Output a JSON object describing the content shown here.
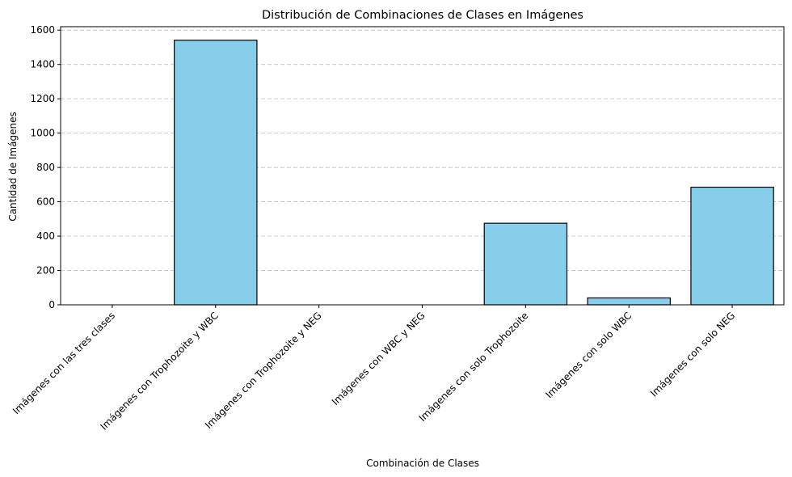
{
  "chart_data": {
    "type": "bar",
    "title": "Distribución de Combinaciones de Clases en Imágenes",
    "xlabel": "Combinación de Clases",
    "ylabel": "Cantidad de Imágenes",
    "categories": [
      "Imágenes con las tres clases",
      "Imágenes con Trophozoite y WBC",
      "Imágenes con Trophozoite y NEG",
      "Imágenes con WBC y NEG",
      "Imágenes con solo Trophozoite",
      "Imágenes con solo WBC",
      "Imágenes con solo NEG"
    ],
    "values": [
      0,
      1541,
      0,
      0,
      475,
      40,
      685
    ],
    "ylim": [
      0,
      1620
    ],
    "yticks": [
      0,
      200,
      400,
      600,
      800,
      1000,
      1200,
      1400,
      1600
    ],
    "grid": "y-dashed",
    "colors": {
      "bar_fill": "#87CEEB",
      "bar_edge": "#000000"
    }
  }
}
